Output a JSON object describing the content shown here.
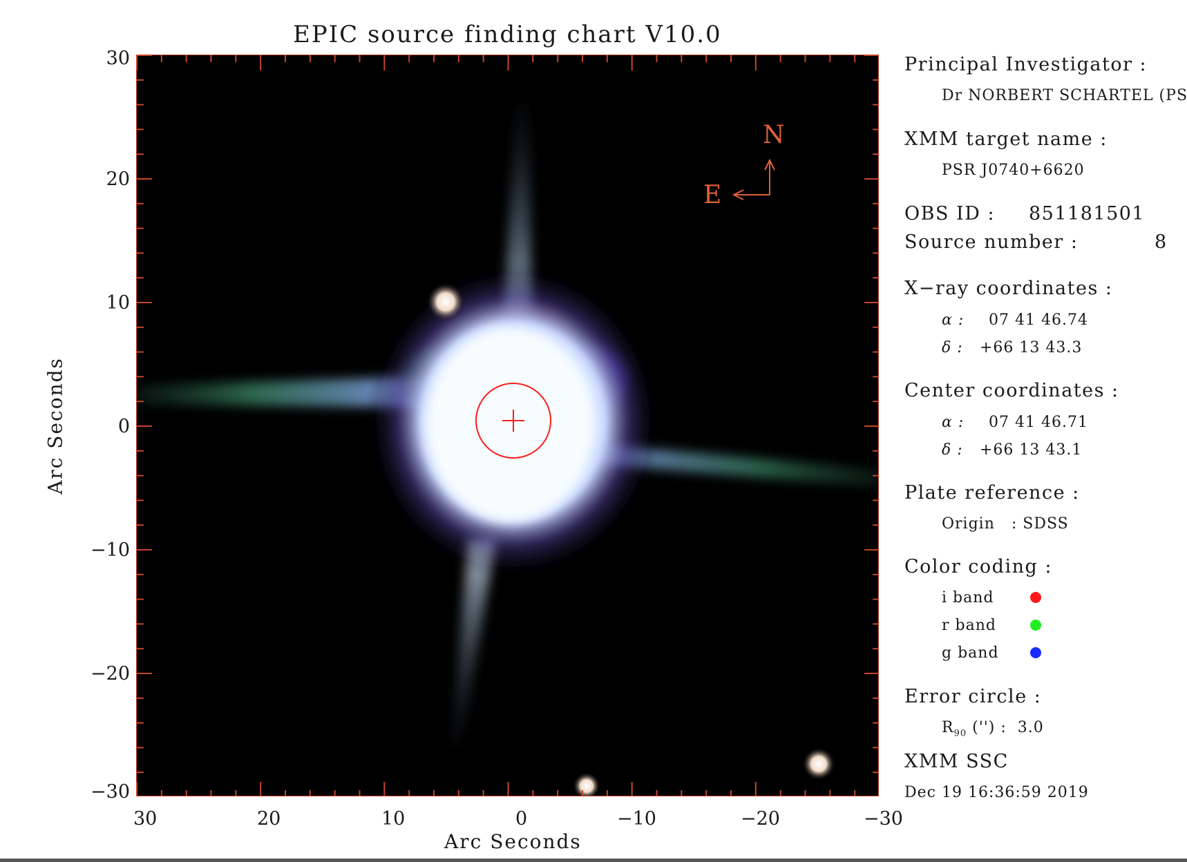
{
  "title": "EPIC source finding chart V10.0",
  "axes": {
    "xlabel": "Arc Seconds",
    "ylabel": "Arc Seconds",
    "xticks": [
      "30",
      "20",
      "10",
      "0",
      "−10",
      "−20",
      "−30"
    ],
    "yticks": [
      "30",
      "20",
      "10",
      "0",
      "−10",
      "−20",
      "−30"
    ],
    "xlim": [
      30,
      -30
    ],
    "ylim": [
      -30,
      30
    ]
  },
  "compass": {
    "north": "N",
    "east": "E"
  },
  "info": {
    "pi_label": "Principal Investigator :",
    "pi_value": "Dr NORBERT SCHARTEL (PS)",
    "target_label": "XMM target name :",
    "target_value": "PSR J0740+6620",
    "obsid_label": "OBS ID :",
    "obsid_value": "851181501",
    "source_label": "Source number :",
    "source_value": "8",
    "xray_label": "X−ray coordinates :",
    "xray_alpha": "07 41 46.74",
    "xray_delta": "+66 13 43.3",
    "center_label": "Center coordinates :",
    "center_alpha": "07 41 46.71",
    "center_delta": "+66 13 43.1",
    "alpha_sym": "α :",
    "delta_sym": "δ :",
    "plate_label": "Plate reference :",
    "plate_value": "Origin   : SDSS",
    "color_label": "Color coding :",
    "bands": [
      {
        "name": "i band",
        "color": "#ff1a1a"
      },
      {
        "name": "r band",
        "color": "#22ee22"
      },
      {
        "name": "g band",
        "color": "#1a2bff"
      }
    ],
    "error_label": "Error circle :",
    "error_r": "R",
    "error_sub": "90",
    "error_value": "('') :  3.0",
    "ssc": "XMM SSC",
    "date": "Dec 19 16:36:59 2019"
  },
  "colors": {
    "axis": "#c8452a",
    "error_circle": "#ff1a1a",
    "compass": "#e0603a"
  }
}
